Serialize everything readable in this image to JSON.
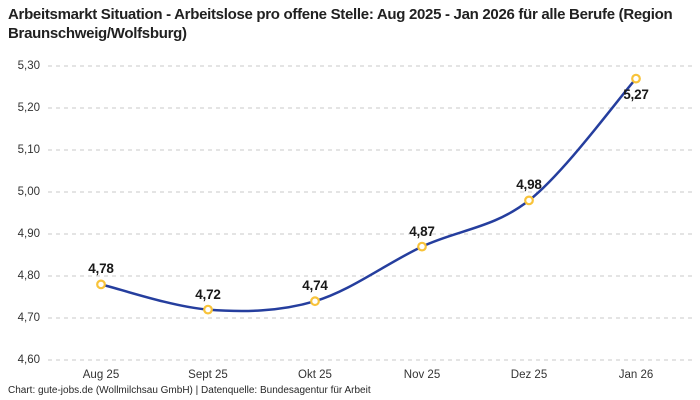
{
  "title": "Arbeitsmarkt Situation - Arbeitslose pro offene Stelle: Aug 2025 - Jan 2026 für alle Berufe (Region Braunschweig/Wolfsburg)",
  "footer": "Chart: gute-jobs.de (Wollmilchsau GmbH) | Datenquelle: Bundesagentur für Arbeit",
  "chart_data": {
    "type": "line",
    "title": "Arbeitsmarkt Situation - Arbeitslose pro offene Stelle: Aug 2025 - Jan 2026 für alle Berufe (Region Braunschweig/Wolfsburg)",
    "categories": [
      "Aug 25",
      "Sept 25",
      "Okt 25",
      "Nov 25",
      "Dez 25",
      "Jan 26"
    ],
    "values": [
      4.78,
      4.72,
      4.74,
      4.87,
      4.98,
      5.27
    ],
    "value_labels": [
      "4,78",
      "4,72",
      "4,74",
      "4,87",
      "4,98",
      "5,27"
    ],
    "xlabel": "",
    "ylabel": "",
    "ylim": [
      4.6,
      5.3
    ],
    "ytick_values": [
      4.6,
      4.7,
      4.8,
      4.9,
      5.0,
      5.1,
      5.2,
      5.3
    ],
    "ytick_labels": [
      "4,60",
      "4,70",
      "4,80",
      "4,90",
      "5,00",
      "5,10",
      "5,20",
      "5,30"
    ],
    "grid": "horizontal-dashed",
    "legend": "none",
    "colors": {
      "line": "#253E9E",
      "marker_stroke": "#F8C33A",
      "marker_fill": "#FFFFFF",
      "gridline": "#C9C9C9",
      "label_text": "#191919",
      "tick_text": "#333333"
    }
  }
}
